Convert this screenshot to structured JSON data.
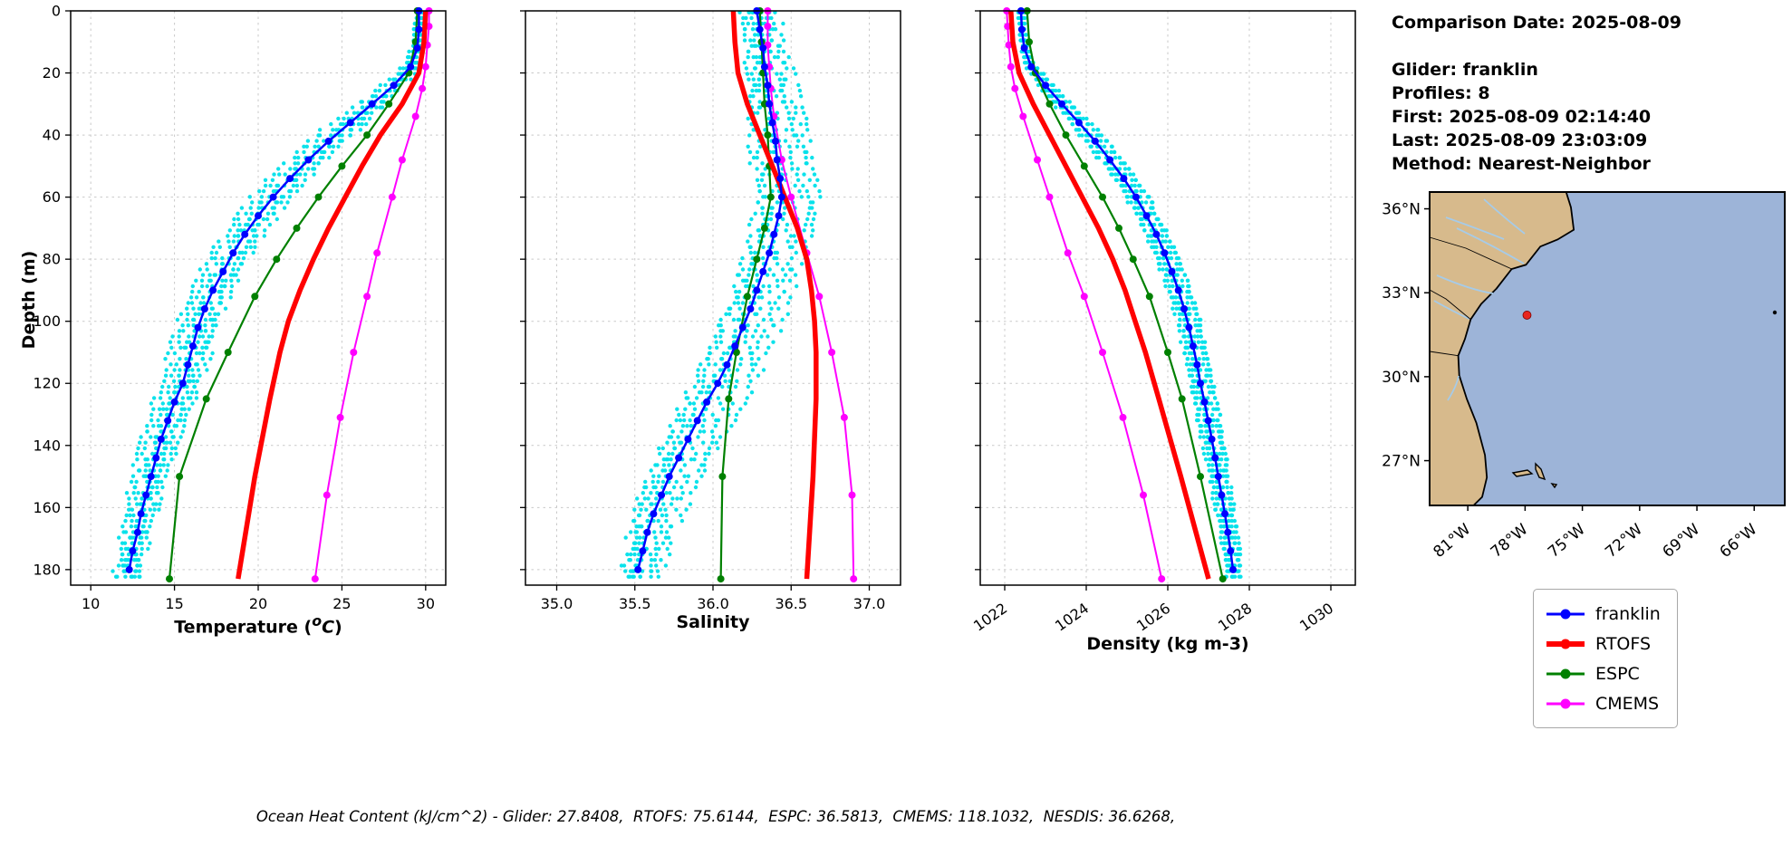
{
  "info": {
    "comparison_date": "Comparison Date: 2025-08-09",
    "glider": "Glider: franklin",
    "profiles": "Profiles: 8",
    "first": "First: 2025-08-09 02:14:40",
    "last": "Last: 2025-08-09 23:03:09",
    "method": "Method: Nearest-Neighbor"
  },
  "footer": {
    "text": "Ocean Heat Content (kJ/cm^2) - Glider: 27.8408,  RTOFS: 75.6144,  ESPC: 36.5813,  CMEMS: 118.1032,  NESDIS: 36.6268,"
  },
  "legend": {
    "items": [
      {
        "label": "franklin",
        "color": "#0000ff",
        "lw": 3
      },
      {
        "label": "RTOFS",
        "color": "#ff0000",
        "lw": 6
      },
      {
        "label": "ESPC",
        "color": "#008000",
        "lw": 3
      },
      {
        "label": "CMEMS",
        "color": "#ff00ff",
        "lw": 3
      }
    ]
  },
  "map": {
    "lat_tick_labels": [
      "36°N",
      "33°N",
      "30°N",
      "27°N"
    ],
    "lat_tick_values": [
      36,
      33,
      30,
      27
    ],
    "lon_tick_labels": [
      "81°W",
      "78°W",
      "75°W",
      "72°W",
      "69°W",
      "66°W"
    ],
    "lon_tick_values": [
      -81,
      -78,
      -75,
      -72,
      -69,
      -66
    ],
    "extent": {
      "lon_min": -83.0,
      "lon_max": -64.4,
      "lat_min": 25.4,
      "lat_max": 36.6
    },
    "land_color": "#d7ba8c",
    "ocean_color": "#9db4d8",
    "river_color": "#a6cbe8",
    "glider_marker": {
      "lon": -77.9,
      "lat": 32.2,
      "color": "#e8261f"
    }
  },
  "chart_data": {
    "type": "line",
    "depth_axis": {
      "label": "Depth (m)",
      "range": [
        0,
        185
      ],
      "ticks": [
        0,
        20,
        40,
        60,
        80,
        100,
        120,
        140,
        160,
        180
      ],
      "tick_labels": [
        "0",
        "20",
        "40",
        "60",
        "80",
        "100",
        "120",
        "140",
        "160",
        "180"
      ],
      "inverted": true
    },
    "panels": [
      {
        "key": "temperature",
        "xlabel_prefix": "Temperature (",
        "xlabel_sup": "o",
        "xlabel_italic": "C",
        "xlabel_suffix": ")",
        "range": [
          8.8,
          31.2
        ],
        "ticks": [
          10,
          15,
          20,
          25,
          30
        ],
        "tick_labels": [
          "10",
          "15",
          "20",
          "25",
          "30"
        ],
        "rotate_tick_labels": false
      },
      {
        "key": "salinity",
        "xlabel": "Salinity",
        "range": [
          34.8,
          37.2
        ],
        "ticks": [
          35.0,
          35.5,
          36.0,
          36.5,
          37.0
        ],
        "tick_labels": [
          "35.0",
          "35.5",
          "36.0",
          "36.5",
          "37.0"
        ],
        "rotate_tick_labels": false
      },
      {
        "key": "density",
        "xlabel": "Density (kg m-3)",
        "range": [
          1021.4,
          1030.6
        ],
        "ticks": [
          1022,
          1024,
          1026,
          1028,
          1030
        ],
        "tick_labels": [
          "1022",
          "1024",
          "1026",
          "1028",
          "1030"
        ],
        "rotate_tick_labels": true
      }
    ],
    "series": [
      {
        "name": "franklin",
        "color": "#0000ff",
        "line_width": 2.5,
        "markers": true,
        "marker_size": 4,
        "depths": [
          0,
          6,
          12,
          18,
          24,
          30,
          36,
          42,
          48,
          54,
          60,
          66,
          72,
          78,
          84,
          90,
          96,
          102,
          108,
          114,
          120,
          126,
          132,
          138,
          144,
          150,
          156,
          162,
          168,
          174,
          180
        ],
        "temperature": [
          29.6,
          29.6,
          29.5,
          29.1,
          28.1,
          26.8,
          25.5,
          24.2,
          23.0,
          21.9,
          20.9,
          20.0,
          19.2,
          18.5,
          17.9,
          17.3,
          16.8,
          16.4,
          16.1,
          15.8,
          15.5,
          15.0,
          14.6,
          14.2,
          13.9,
          13.6,
          13.3,
          13.0,
          12.8,
          12.5,
          12.3
        ],
        "salinity": [
          36.28,
          36.3,
          36.32,
          36.33,
          36.35,
          36.36,
          36.38,
          36.4,
          36.41,
          36.43,
          36.44,
          36.42,
          36.39,
          36.36,
          36.32,
          36.28,
          36.24,
          36.19,
          36.14,
          36.09,
          36.03,
          35.96,
          35.9,
          35.84,
          35.78,
          35.72,
          35.67,
          35.62,
          35.58,
          35.55,
          35.52
        ],
        "density": [
          1022.4,
          1022.42,
          1022.48,
          1022.65,
          1023.0,
          1023.4,
          1023.82,
          1024.22,
          1024.58,
          1024.92,
          1025.22,
          1025.48,
          1025.72,
          1025.92,
          1026.1,
          1026.26,
          1026.4,
          1026.52,
          1026.62,
          1026.72,
          1026.8,
          1026.9,
          1026.99,
          1027.08,
          1027.16,
          1027.24,
          1027.32,
          1027.4,
          1027.47,
          1027.54,
          1027.6
        ]
      },
      {
        "name": "RTOFS",
        "color": "#ff0000",
        "line_width": 5.5,
        "markers": false,
        "marker_size": 0,
        "depths": [
          0,
          10,
          20,
          30,
          40,
          50,
          60,
          70,
          80,
          90,
          100,
          110,
          125,
          150,
          183
        ],
        "temperature": [
          30.0,
          29.9,
          29.6,
          28.6,
          27.3,
          26.2,
          25.2,
          24.2,
          23.3,
          22.5,
          21.8,
          21.3,
          20.7,
          19.8,
          18.8
        ],
        "salinity": [
          36.13,
          36.14,
          36.16,
          36.22,
          36.3,
          36.38,
          36.46,
          36.54,
          36.6,
          36.63,
          36.65,
          36.66,
          36.66,
          36.64,
          36.6
        ],
        "density": [
          1022.15,
          1022.2,
          1022.35,
          1022.7,
          1023.1,
          1023.5,
          1023.9,
          1024.3,
          1024.65,
          1024.95,
          1025.2,
          1025.45,
          1025.78,
          1026.32,
          1027.0
        ]
      },
      {
        "name": "ESPC",
        "color": "#008000",
        "line_width": 2.2,
        "markers": true,
        "marker_size": 4,
        "depths": [
          0,
          10,
          20,
          30,
          40,
          50,
          60,
          70,
          80,
          92,
          110,
          125,
          150,
          183
        ],
        "temperature": [
          29.5,
          29.4,
          29.0,
          27.8,
          26.5,
          25.0,
          23.6,
          22.3,
          21.1,
          19.8,
          18.2,
          16.9,
          15.3,
          14.7
        ],
        "salinity": [
          36.3,
          36.31,
          36.32,
          36.33,
          36.35,
          36.36,
          36.37,
          36.33,
          36.28,
          36.22,
          36.15,
          36.1,
          36.06,
          36.05
        ],
        "density": [
          1022.55,
          1022.6,
          1022.75,
          1023.1,
          1023.5,
          1023.95,
          1024.4,
          1024.8,
          1025.15,
          1025.55,
          1026.0,
          1026.35,
          1026.8,
          1027.35
        ]
      },
      {
        "name": "CMEMS",
        "color": "#ff00ff",
        "line_width": 2,
        "markers": true,
        "marker_size": 4,
        "depths": [
          0,
          5,
          11,
          18,
          25,
          34,
          48,
          60,
          78,
          92,
          110,
          131,
          156,
          183
        ],
        "temperature": [
          30.2,
          30.2,
          30.1,
          30.0,
          29.8,
          29.4,
          28.6,
          28.0,
          27.1,
          26.5,
          25.7,
          24.9,
          24.1,
          23.4
        ],
        "salinity": [
          36.35,
          36.35,
          36.35,
          36.36,
          36.37,
          36.39,
          36.44,
          36.5,
          36.6,
          36.68,
          36.76,
          36.84,
          36.89,
          36.9
        ],
        "density": [
          1022.05,
          1022.07,
          1022.1,
          1022.15,
          1022.25,
          1022.45,
          1022.8,
          1023.1,
          1023.55,
          1023.95,
          1024.4,
          1024.9,
          1025.4,
          1025.85
        ]
      }
    ],
    "raw_scatter": {
      "name": "glider raw profiles",
      "color": "#00e0ea",
      "profiles": 8,
      "spread": {
        "temperature": 1.6,
        "salinity": 0.22,
        "density": 0.35
      },
      "noise": {
        "temperature": 0.25,
        "salinity": 0.04,
        "density": 0.06
      }
    }
  }
}
